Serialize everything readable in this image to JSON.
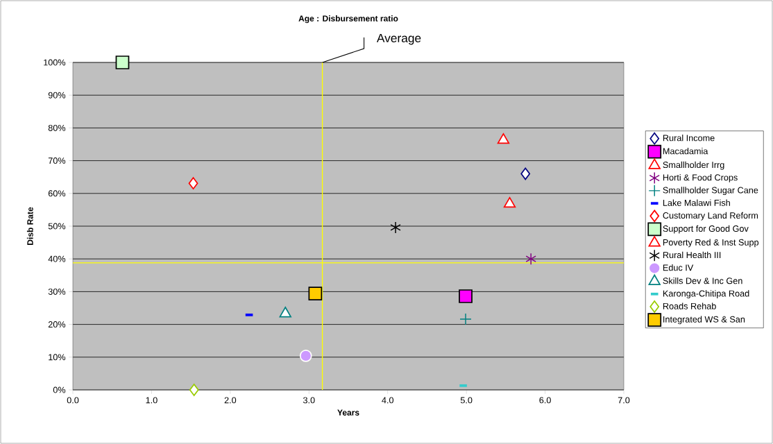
{
  "chart_data": {
    "type": "scatter",
    "title": "Age : Disbursement ratio",
    "xlabel": "Years",
    "ylabel": "Disb Rate",
    "xlim": [
      0,
      7
    ],
    "ylim": [
      0,
      100
    ],
    "xticks": [
      {
        "value": 0,
        "label": "0.0"
      },
      {
        "value": 1,
        "label": "1.0"
      },
      {
        "value": 2,
        "label": "2.0"
      },
      {
        "value": 3,
        "label": "3.0"
      },
      {
        "value": 4,
        "label": "4.0"
      },
      {
        "value": 5,
        "label": "5.0"
      },
      {
        "value": 6,
        "label": "6.0"
      },
      {
        "value": 7,
        "label": "7.0"
      }
    ],
    "yticks": [
      {
        "value": 0,
        "label": "0%"
      },
      {
        "value": 10,
        "label": "10%"
      },
      {
        "value": 20,
        "label": "20%"
      },
      {
        "value": 30,
        "label": "30%"
      },
      {
        "value": 40,
        "label": "40%"
      },
      {
        "value": 50,
        "label": "50%"
      },
      {
        "value": 60,
        "label": "60%"
      },
      {
        "value": 70,
        "label": "70%"
      },
      {
        "value": 80,
        "label": "80%"
      },
      {
        "value": 90,
        "label": "90%"
      },
      {
        "value": 100,
        "label": "100%"
      }
    ],
    "grid": "y",
    "legend": "right",
    "ref_lines": [
      {
        "axis": "x",
        "value": 3.17,
        "label": "Average",
        "color": "#ffff00"
      },
      {
        "axis": "y",
        "value": 38.8,
        "color": "#ffff00"
      }
    ],
    "series": [
      {
        "name": "Rural Income",
        "color": "#000080",
        "marker": "diamond",
        "x": [
          5.75
        ],
        "values": [
          66
        ]
      },
      {
        "name": "Macadamia",
        "color": "#ff00ff",
        "marker": "square",
        "x": [
          4.99
        ],
        "values": [
          28.6
        ]
      },
      {
        "name": "Smallholder Irrg",
        "color": "#ff0000",
        "marker": "triangle",
        "x": [
          5.55
        ],
        "values": [
          56.8
        ]
      },
      {
        "name": "Horti & Food Crops",
        "color": "#800080",
        "marker": "cross",
        "line_style": "solid",
        "x": [
          5.82
        ],
        "values": [
          40
        ]
      },
      {
        "name": "Smallholder Sugar Cane",
        "color": "#008080",
        "marker": "cross",
        "x": [
          4.99
        ],
        "values": [
          21.6
        ]
      },
      {
        "name": "Lake Malawi Fish",
        "color": "#0000ff",
        "x": [
          2.24
        ],
        "values": [
          22.9
        ]
      },
      {
        "name": "Customary Land Reform",
        "color": "#ff0000",
        "marker": "diamond",
        "x": [
          1.53
        ],
        "values": [
          63.1
        ]
      },
      {
        "name": "Support for Good Gov",
        "color": "#ccffcc",
        "marker": "square",
        "x": [
          0.63
        ],
        "values": [
          100
        ]
      },
      {
        "name": "Poverty Red & Inst Supp",
        "color": "#ff0000",
        "marker": "triangle",
        "x": [
          5.47
        ],
        "values": [
          76.3
        ]
      },
      {
        "name": "Rural Health III",
        "color": "#000000",
        "marker": "cross",
        "line_style": "solid",
        "x": [
          4.1
        ],
        "values": [
          49.6
        ]
      },
      {
        "name": "Educ IV",
        "color": "#cc99ff",
        "marker": "circle",
        "x": [
          2.96
        ],
        "values": [
          10.4
        ]
      },
      {
        "name": "Skills Dev & Inc Gen",
        "color": "#008080",
        "marker": "triangle",
        "x": [
          2.7
        ],
        "values": [
          23.3
        ]
      },
      {
        "name": "Karonga-Chitipa Road",
        "color": "#33cccc",
        "x": [
          4.96
        ],
        "values": [
          1.3
        ]
      },
      {
        "name": "Roads Rehab",
        "color": "#99cc00",
        "marker": "diamond",
        "x": [
          1.54
        ],
        "values": [
          0
        ]
      },
      {
        "name": "Integrated WS & San",
        "color": "#ffcc00",
        "marker": "square",
        "x": [
          3.08
        ],
        "values": [
          29.4
        ]
      }
    ]
  }
}
